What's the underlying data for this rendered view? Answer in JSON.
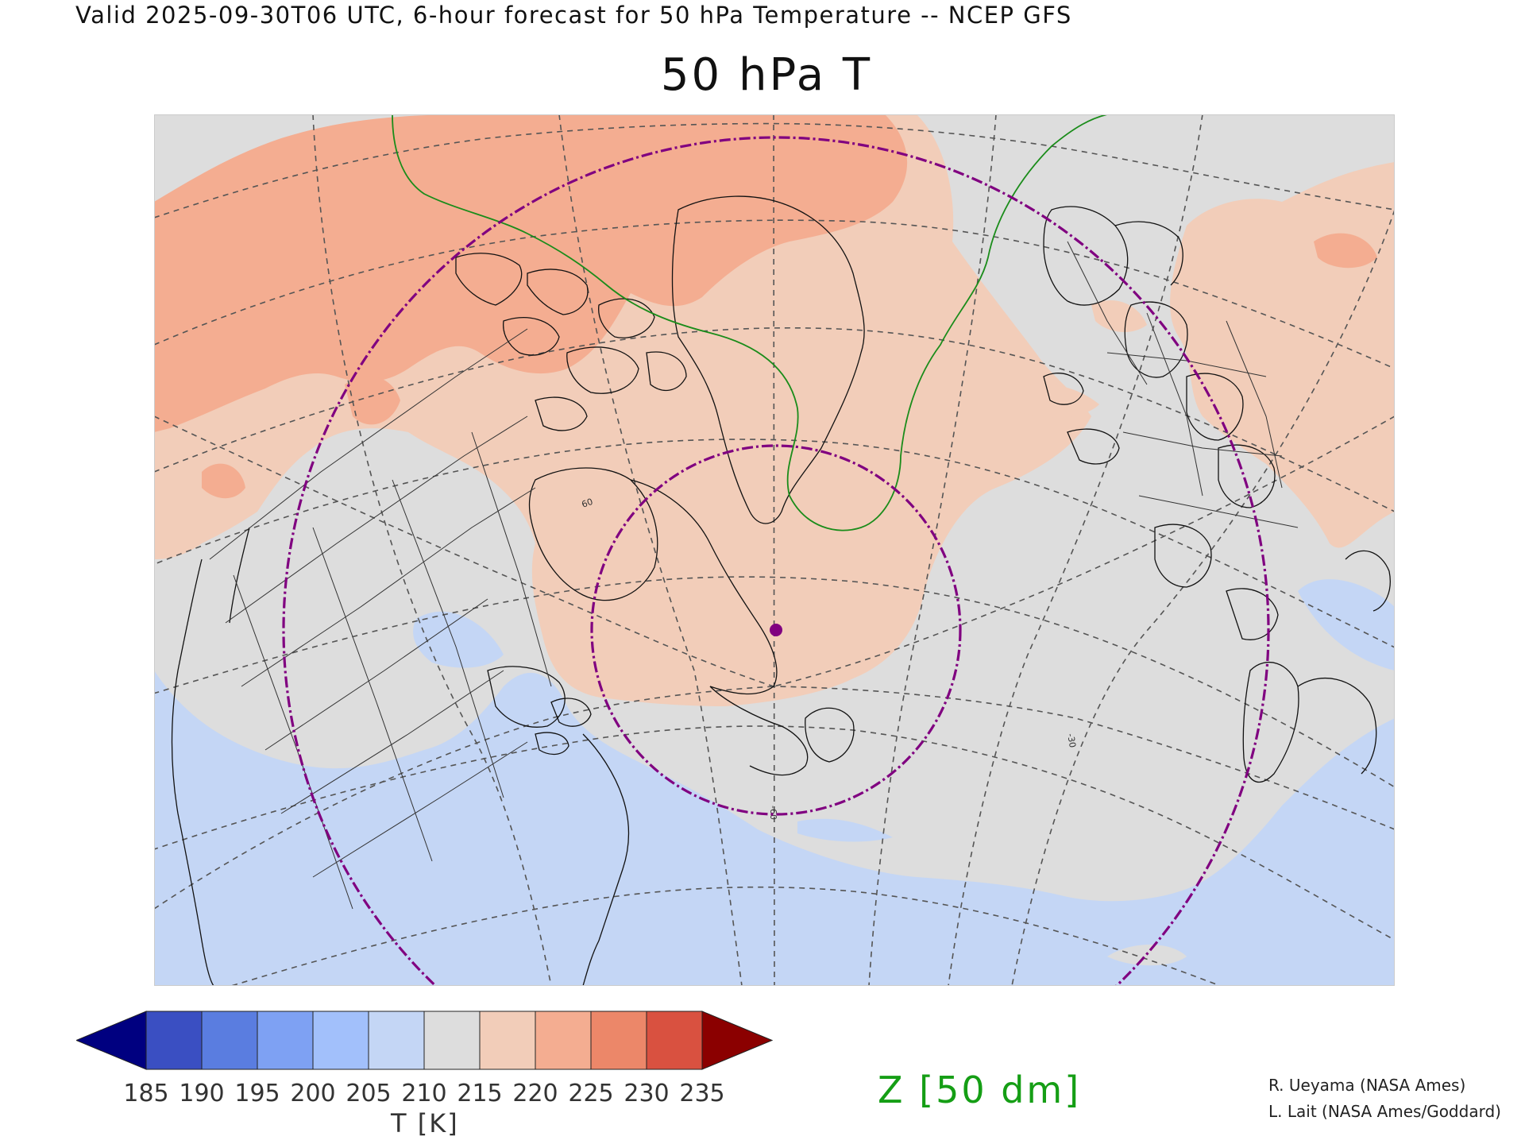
{
  "header": {
    "valid_line": "Valid 2025-09-30T06 UTC, 6-hour forecast for 50 hPa Temperature -- NCEP GFS",
    "title": "50 hPa T"
  },
  "map": {
    "projection": "polar stereographic, North Atlantic / North America sector",
    "graticule_labels": [
      "-60",
      "-30",
      "60"
    ],
    "marker": {
      "description": "location marker over Labrador",
      "color": "#800080"
    },
    "range_rings": {
      "count": 2,
      "color": "#800080",
      "style": "dash-dot"
    },
    "contour_line": {
      "field": "Z",
      "color": "#1a8c1a"
    },
    "fill_legend": "temperature shading"
  },
  "colorbar": {
    "levels": [
      "185",
      "190",
      "195",
      "200",
      "205",
      "210",
      "215",
      "220",
      "225",
      "230",
      "235"
    ],
    "colors": [
      "#000080",
      "#3a4fc2",
      "#5a7de0",
      "#7ea1f3",
      "#a2c0fb",
      "#c4d6f5",
      "#dddddd",
      "#f2cdb9",
      "#f4ad91",
      "#ec8769",
      "#d95140",
      "#8b0000"
    ],
    "unit_label": "T [K]",
    "extend": "both"
  },
  "contour_label": "Z [50 dm]",
  "credits": {
    "line1": "R. Ueyama (NASA Ames)",
    "line2": "L. Lait (NASA Ames/Goddard)"
  }
}
